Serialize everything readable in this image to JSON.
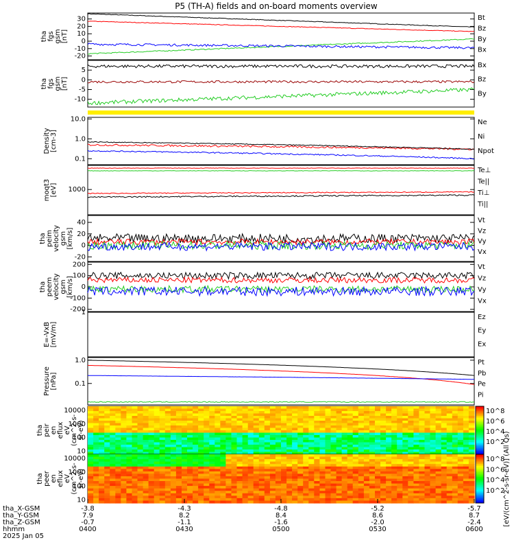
{
  "title": "P5 (TH-A) fields and on-board moments overview",
  "colors": {
    "black": "#000000",
    "red": "#ff0000",
    "green": "#22cc22",
    "blue": "#0000ff",
    "yellow": "#ffee00",
    "darkred": "#990000"
  },
  "chart_data": [
    {
      "type": "line",
      "ylabel": [
        "tha",
        "fgs",
        "gsm",
        "[nT]"
      ],
      "ylim": [
        -25,
        38
      ],
      "yticks": [
        30,
        20,
        10,
        0,
        -10,
        -20
      ],
      "series": [
        {
          "name": "Bt",
          "color": "black",
          "start": 37,
          "end": 19,
          "noise": 0.4
        },
        {
          "name": "Bz",
          "color": "red",
          "start": 27,
          "end": 13,
          "noise": 0.4
        },
        {
          "name": "By",
          "color": "green",
          "start": -17,
          "end": 3,
          "noise": 0.7
        },
        {
          "name": "Bx",
          "color": "blue",
          "start": -4,
          "end": -9,
          "noise": 1.5
        }
      ]
    },
    {
      "type": "line",
      "ylabel": [
        "tha",
        "fgs",
        "gsm",
        "[nT]"
      ],
      "ylim": [
        -14,
        10
      ],
      "yticks": [
        5,
        0,
        -5,
        -10
      ],
      "series": [
        {
          "name": "Bx",
          "color": "black",
          "start": 7,
          "end": 7,
          "noise": 0.8
        },
        {
          "name": "Bz",
          "color": "darkred",
          "start": -1,
          "end": -1,
          "noise": 0.6
        },
        {
          "name": "By",
          "color": "green",
          "start": -12,
          "end": -5,
          "noise": 1.0
        }
      ]
    },
    {
      "type": "line",
      "ylabel": [
        "Density",
        "[cm-3]"
      ],
      "ylim": [
        0.05,
        12
      ],
      "yscale": "log",
      "yticks": [
        "10.0",
        "1.0",
        "0.1"
      ],
      "ytickvals": [
        10,
        1,
        0.1
      ],
      "series": [
        {
          "name": "Ne",
          "color": "red",
          "start": 0.5,
          "end": 0.3,
          "noise": 0.15
        },
        {
          "name": "Ni",
          "color": "black",
          "start": 0.7,
          "end": 0.3,
          "noise": 0.1
        },
        {
          "name": "Npot",
          "color": "blue",
          "start": 0.25,
          "end": 0.1,
          "noise": 0.05
        }
      ]
    },
    {
      "type": "line",
      "ylabel": [
        "moqt3",
        "[eV]"
      ],
      "ylim": [
        100,
        9000
      ],
      "yscale": "log",
      "yticks": [
        "1000"
      ],
      "ytickvals": [
        1000
      ],
      "series": [
        {
          "name": "Te⊥",
          "color": "red",
          "start": 7000,
          "end": 7000,
          "noise": 400
        },
        {
          "name": "Te||",
          "color": "black",
          "start": 500,
          "end": 600,
          "noise": 80
        },
        {
          "name": "Ti⊥",
          "color": "red",
          "start": 700,
          "end": 800,
          "noise": 80
        },
        {
          "name": "Ti||",
          "color": "green",
          "start": 5500,
          "end": 5500,
          "noise": 300
        }
      ]
    },
    {
      "type": "line",
      "ylabel": [
        "tha",
        "peim",
        "velocity",
        "gsm",
        "[km/s]"
      ],
      "ylim": [
        -28,
        52
      ],
      "yticks": [
        40,
        20,
        0,
        -20
      ],
      "series": [
        {
          "name": "Vt",
          "color": "black",
          "start": 12,
          "end": 12,
          "noise": 8
        },
        {
          "name": "Vz",
          "color": "red",
          "start": 6,
          "end": 6,
          "noise": 5
        },
        {
          "name": "Vy",
          "color": "green",
          "start": 0,
          "end": 0,
          "noise": 7
        },
        {
          "name": "Vx",
          "color": "blue",
          "start": -2,
          "end": -2,
          "noise": 7
        }
      ]
    },
    {
      "type": "line",
      "ylabel": [
        "tha",
        "peem",
        "velocity",
        "gsm",
        "[km/s]"
      ],
      "ylim": [
        -220,
        220
      ],
      "yticks": [
        200,
        100,
        0,
        -100,
        -200
      ],
      "series": [
        {
          "name": "Vt",
          "color": "black",
          "start": 100,
          "end": 100,
          "noise": 30
        },
        {
          "name": "Vz",
          "color": "red",
          "start": 60,
          "end": 60,
          "noise": 25
        },
        {
          "name": "Vy",
          "color": "green",
          "start": -20,
          "end": -20,
          "noise": 30
        },
        {
          "name": "Vx",
          "color": "blue",
          "start": -40,
          "end": -40,
          "noise": 40
        }
      ]
    },
    {
      "type": "line",
      "ylabel": [
        "E=-VxB",
        "[mV/m]"
      ],
      "ylim": [
        0,
        1.0
      ],
      "yticks": [
        1.0
      ],
      "series": [
        {
          "name": "Ez",
          "color": "red"
        },
        {
          "name": "Ey",
          "color": "green"
        },
        {
          "name": "Ex",
          "color": "blue"
        }
      ]
    },
    {
      "type": "line",
      "ylabel": [
        "Pressure",
        "[nPa]"
      ],
      "ylim": [
        0.012,
        1.3
      ],
      "yscale": "log",
      "yticks": [
        "1.0",
        "0.1"
      ],
      "ytickvals": [
        1.0,
        0.1
      ],
      "series": [
        {
          "name": "Pt",
          "color": "black",
          "start": 1.0,
          "end": 0.22,
          "noise": 0.01
        },
        {
          "name": "Pb",
          "color": "red",
          "start": 0.6,
          "end": 0.09,
          "noise": 0.01
        },
        {
          "name": "Pe",
          "color": "green",
          "start": 0.016,
          "end": 0.016,
          "noise": 0.002
        },
        {
          "name": "Pi",
          "color": "blue",
          "start": 0.22,
          "end": 0.15,
          "noise": 0.005
        }
      ]
    },
    {
      "type": "heatmap",
      "ylabel": [
        "tha",
        "peir",
        "en",
        "eflux",
        "eV",
        "(cm^2-s-",
        "sr-eV)"
      ],
      "yscale": "log",
      "ylim": [
        6,
        20000
      ],
      "yticks": [
        "10000",
        "1000",
        "100",
        "10"
      ],
      "ytickvals": [
        10000,
        1000,
        100,
        10
      ],
      "colorbar": {
        "label": "[eV/(cm^2-s-sr-eV)] (All Qs)",
        "ticks": [
          "10^8",
          "10^6",
          "10^4",
          "10^2"
        ]
      }
    },
    {
      "type": "heatmap",
      "ylabel": [
        "tha",
        "peer",
        "en",
        "eflux",
        "eV",
        "(cm^2-s-",
        "sr-eV)"
      ],
      "yscale": "log",
      "ylim": [
        6,
        20000
      ],
      "yticks": [
        "10000",
        "1000",
        "100",
        "10"
      ],
      "ytickvals": [
        10000,
        1000,
        100,
        10
      ],
      "colorbar": {
        "label": "[eV/(cm^2-s-sr-eV)] (All Qs)",
        "ticks": [
          "10^8",
          "10^6",
          "10^4",
          "10^2"
        ]
      }
    }
  ],
  "xaxis": {
    "row_labels": [
      "tha_X-GSM",
      "tha_Y-GSM",
      "tha_Z-GSM",
      "hhmm",
      "2025 Jan 05"
    ],
    "ticks": [
      {
        "x": "-3.8",
        "y": "7.9",
        "z": "-0.7",
        "t": "0400"
      },
      {
        "x": "-4.3",
        "y": "8.2",
        "z": "-1.1",
        "t": "0430"
      },
      {
        "x": "-4.8",
        "y": "8.4",
        "z": "-1.6",
        "t": "0500"
      },
      {
        "x": "-5.2",
        "y": "8.6",
        "z": "-2.0",
        "t": "0530"
      },
      {
        "x": "-5.7",
        "y": "8.7",
        "z": "-2.4",
        "t": "0600"
      }
    ]
  }
}
